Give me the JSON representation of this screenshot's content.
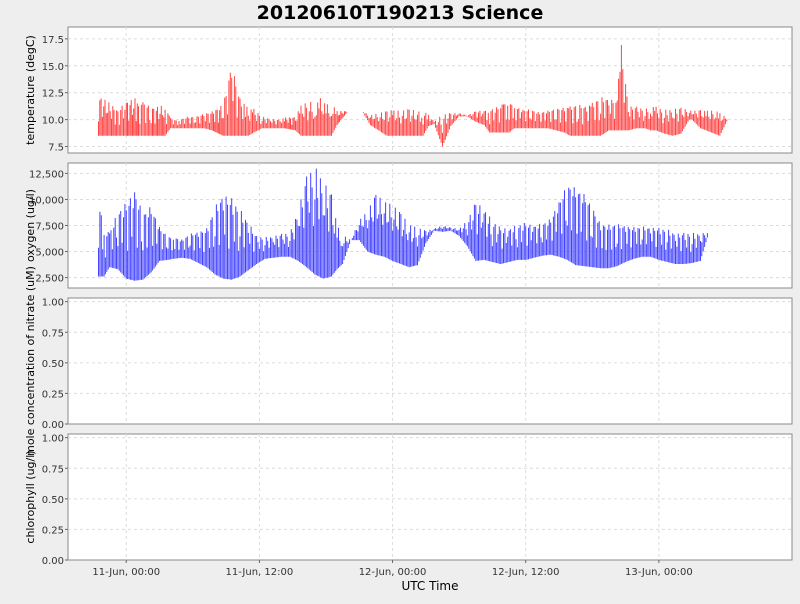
{
  "chart_data": [
    {
      "type": "line",
      "title": "20120610T190213 Science",
      "xlabel": "UTC Time",
      "ylabel": "temperature (degC)",
      "ylim": [
        6.9,
        18.6
      ],
      "yticks": [
        7.5,
        10.0,
        12.5,
        15.0,
        17.5
      ],
      "ytick_labels": [
        "7.5",
        "10.0",
        "12.5",
        "15.0",
        "17.5"
      ],
      "grid": true,
      "color": "#ff4444",
      "series": [
        {
          "x": [
            -5.0,
            -1.5,
            0.0,
            1.8,
            2.2,
            3.0,
            4.5,
            7.0,
            8.0,
            8.5,
            9.5,
            11.0,
            12.5,
            14.0,
            15.5,
            17.5,
            19.0,
            20.5,
            21.5,
            22.0,
            23.0,
            24.5,
            26.0,
            27.5,
            28.5,
            30.5,
            31.5,
            33.0,
            34.0,
            35.0,
            36.0,
            37.0,
            38.0,
            40.0,
            41.5,
            42.5,
            44.0,
            45.5,
            47.0,
            48.0,
            49.5,
            51.0,
            52.5,
            53.5,
            54.5,
            55.5,
            57.0,
            58.5,
            60.0,
            61.5,
            63.0,
            64.5,
            65.5,
            67.0,
            68.0,
            69.0,
            70.0,
            71.5,
            73.0,
            74.5,
            76.0,
            77.5,
            79.0,
            80.0,
            81.5,
            83.0,
            84.0,
            85.5,
            87.0,
            88.5,
            89.0,
            90.5,
            92.0,
            93.5,
            94.5,
            95.5,
            97.0,
            98.5,
            100.0,
            101.5,
            102.0,
            103.5,
            104.5,
            106.0,
            107.0,
            108.5,
            109.5,
            110.5,
            111.0
          ],
          "min": [
            8.5,
            8.5,
            8.5,
            8.5,
            8.5,
            8.5,
            8.5,
            8.5,
            9.2,
            9.2,
            9.2,
            9.2,
            9.2,
            9.2,
            9.0,
            8.5,
            8.5,
            8.5,
            8.5,
            8.5,
            8.8,
            9.2,
            9.2,
            9.2,
            9.2,
            9.0,
            8.5,
            8.5,
            8.5,
            8.5,
            8.5,
            8.5,
            9.5,
            10.8,
            10.8,
            10.8,
            9.5,
            9.0,
            8.5,
            8.5,
            8.5,
            8.5,
            8.5,
            8.5,
            9.4,
            9.6,
            7.5,
            9.4,
            10.3,
            10.3,
            9.8,
            9.5,
            8.8,
            8.8,
            8.8,
            8.8,
            9.2,
            9.2,
            9.2,
            9.2,
            9.2,
            9.0,
            8.8,
            8.5,
            8.5,
            8.5,
            8.5,
            8.5,
            9.0,
            9.0,
            9.0,
            9.0,
            9.2,
            9.2,
            9.0,
            9.0,
            8.7,
            8.5,
            8.7,
            10.0,
            10.0,
            9.2,
            9.0,
            8.7,
            8.5,
            10.1,
            10.1,
            10.1,
            10.1
          ],
          "max": [
            12.3,
            11.0,
            11.8,
            12.0,
            11.6,
            11.8,
            11.2,
            11.3,
            10.2,
            10.0,
            10.0,
            10.3,
            10.3,
            10.6,
            10.8,
            11.5,
            15.4,
            12.0,
            11.5,
            11.0,
            11.0,
            10.3,
            10.1,
            10.0,
            10.2,
            10.3,
            11.3,
            11.8,
            11.2,
            12.0,
            11.4,
            11.5,
            10.8,
            10.8,
            10.8,
            10.8,
            10.4,
            10.6,
            10.8,
            10.9,
            10.8,
            11.0,
            10.8,
            10.8,
            10.5,
            9.8,
            10.5,
            10.6,
            10.6,
            10.4,
            10.8,
            10.9,
            11.0,
            11.2,
            11.6,
            11.8,
            11.3,
            11.0,
            11.0,
            10.7,
            10.9,
            11.1,
            11.2,
            11.3,
            11.5,
            11.3,
            11.6,
            12.2,
            12.0,
            11.8,
            18.2,
            11.3,
            11.2,
            11.0,
            11.2,
            11.2,
            10.9,
            11.0,
            11.1,
            10.9,
            10.8,
            10.9,
            10.8,
            10.9,
            10.6,
            10.1,
            10.1,
            10.1,
            10.1
          ]
        }
      ]
    },
    {
      "type": "line",
      "ylabel": "oxygen (ug/l)",
      "ylim": [
        1500,
        13500
      ],
      "yticks": [
        2500,
        5000,
        7500,
        10000,
        12500
      ],
      "ytick_labels": [
        "2,500",
        "5,000",
        "7,500",
        "10,000",
        "12,500"
      ],
      "grid": true,
      "color": "#4444ff",
      "series": [
        {
          "x": [
            -5.0,
            -4.0,
            -3.0,
            -1.5,
            0.0,
            1.5,
            3.0,
            4.5,
            6.0,
            7.5,
            8.5,
            10.0,
            11.5,
            13.0,
            14.5,
            16.0,
            17.5,
            19.0,
            20.5,
            22.0,
            23.5,
            25.0,
            26.5,
            28.0,
            29.5,
            31.0,
            32.5,
            34.0,
            35.5,
            37.0,
            38.0,
            39.0,
            40.5,
            42.0,
            43.5,
            45.0,
            46.5,
            48.0,
            49.5,
            51.0,
            52.5,
            54.0,
            55.5,
            57.0,
            58.5,
            60.0,
            61.5,
            63.0,
            64.5,
            66.0,
            67.5,
            69.0,
            70.5,
            72.0,
            73.5,
            75.0,
            76.5,
            78.0,
            79.5,
            81.0,
            82.5,
            84.0,
            85.5,
            87.0,
            88.5,
            90.0,
            91.5,
            93.0,
            94.5,
            96.0,
            97.5,
            99.0,
            100.5,
            102.0,
            103.5,
            105.0,
            106.5,
            108.0,
            109.5,
            111.0
          ],
          "min": [
            2600,
            2600,
            3500,
            3300,
            2400,
            2200,
            2300,
            3000,
            4100,
            4200,
            4300,
            4400,
            4300,
            3900,
            3500,
            2800,
            2400,
            2300,
            2600,
            3200,
            3800,
            4300,
            4400,
            4500,
            4500,
            4100,
            3500,
            2800,
            2400,
            2600,
            3300,
            3800,
            6100,
            6100,
            5000,
            4700,
            4500,
            4100,
            3800,
            3500,
            3700,
            5800,
            7000,
            6900,
            7000,
            6500,
            5500,
            4100,
            4200,
            4000,
            3800,
            4000,
            4200,
            4200,
            4400,
            4600,
            4700,
            4500,
            4200,
            3700,
            3600,
            3500,
            3400,
            3400,
            3600,
            4000,
            4300,
            4500,
            4500,
            4200,
            4000,
            3800,
            3800,
            3900,
            4100,
            6800,
            6800,
            6800,
            6800,
            6800
          ],
          "max": [
            10500,
            7000,
            7000,
            9000,
            9800,
            11200,
            8900,
            9500,
            7500,
            6500,
            6500,
            6200,
            6800,
            7000,
            7300,
            9500,
            10800,
            10200,
            9200,
            8000,
            6500,
            6400,
            6500,
            6700,
            6800,
            9000,
            12200,
            13200,
            11800,
            10500,
            7500,
            6600,
            6100,
            8000,
            8900,
            10500,
            9800,
            9500,
            8700,
            7600,
            7300,
            7000,
            7200,
            7500,
            7300,
            7200,
            8000,
            9800,
            9200,
            8000,
            7300,
            7300,
            7600,
            7800,
            7600,
            7800,
            8200,
            10000,
            11700,
            11300,
            10800,
            9500,
            7800,
            7700,
            7800,
            7600,
            7400,
            7500,
            7400,
            7300,
            7200,
            6800,
            6800,
            6800,
            6800,
            6800,
            6800,
            6800,
            6800,
            6800
          ]
        }
      ]
    },
    {
      "type": "line",
      "ylabel": "mole concentration of nitrate (uM)",
      "ylim": [
        0,
        1.03
      ],
      "yticks": [
        0,
        0.25,
        0.5,
        0.75,
        1.0
      ],
      "ytick_labels": [
        "0.00",
        "0.25",
        "0.50",
        "0.75",
        "1.00"
      ],
      "grid": true,
      "series": []
    },
    {
      "type": "line",
      "ylabel": "chlorophyll (ug/l)",
      "ylim": [
        0,
        1.03
      ],
      "yticks": [
        0,
        0.25,
        0.5,
        0.75,
        1.0
      ],
      "ytick_labels": [
        "0.00",
        "0.25",
        "0.50",
        "0.75",
        "1.00"
      ],
      "grid": true,
      "series": []
    }
  ],
  "x_axis": {
    "xlim": [
      -10.5,
      120
    ],
    "ticks": [
      0,
      24,
      48,
      72,
      96
    ],
    "tick_labels": [
      "11-Jun, 00:00",
      "11-Jun, 12:00",
      "12-Jun, 00:00",
      "12-Jun, 12:00",
      "13-Jun, 00:00"
    ]
  }
}
